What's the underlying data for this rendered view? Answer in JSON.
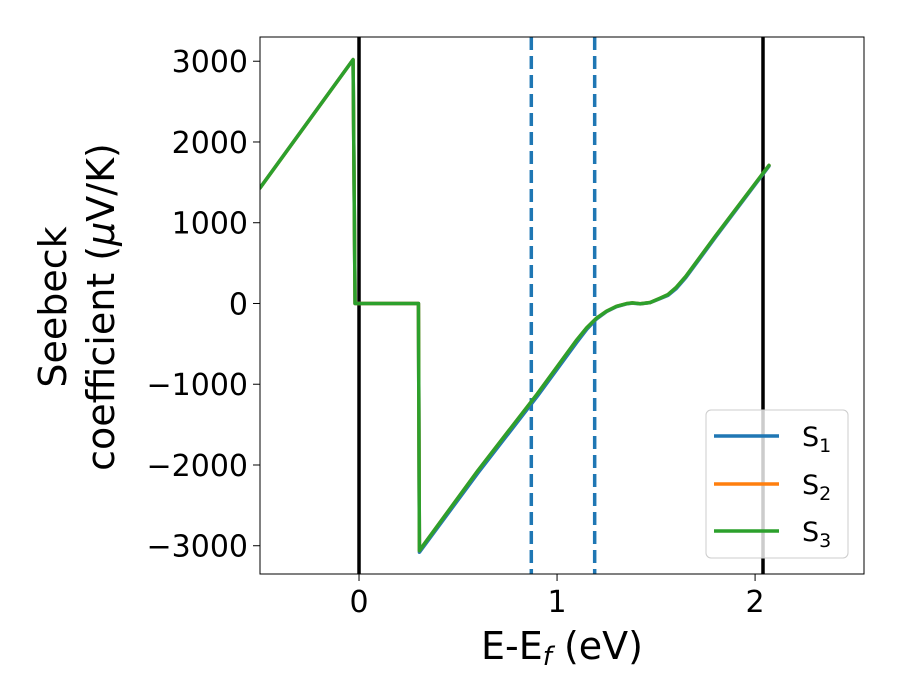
{
  "chart_data": {
    "type": "line",
    "xlabel": {
      "main": "E-E",
      "sub": "f",
      "tail": " (eV)"
    },
    "ylabel": {
      "line1": "Seebeck",
      "line2_prefix": "coefficient  (",
      "line2_mu": "μ",
      "line2_suffix": "V/K)"
    },
    "xlim": [
      -0.5,
      2.55
    ],
    "ylim": [
      -3350,
      3300
    ],
    "xticks": [
      0,
      1,
      2
    ],
    "xtick_labels": [
      "0",
      "1",
      "2"
    ],
    "yticks": [
      -3000,
      -2000,
      -1000,
      0,
      1000,
      2000,
      3000
    ],
    "ytick_labels": [
      "−3000",
      "−2000",
      "−1000",
      "0",
      "1000",
      "2000",
      "3000"
    ],
    "grid": false,
    "legend_position": "lower-right",
    "vlines": [
      {
        "x": 0.0,
        "style": "solid",
        "color": "#000000"
      },
      {
        "x": 2.04,
        "style": "solid",
        "color": "#000000"
      },
      {
        "x": 0.87,
        "style": "dashed",
        "color": "#1f77b4"
      },
      {
        "x": 1.19,
        "style": "dashed",
        "color": "#1f77b4"
      }
    ],
    "series": [
      {
        "name": {
          "main": "S",
          "sub": "1"
        },
        "color": "#1f77b4",
        "x": [
          -0.5,
          -0.03,
          -0.02,
          0.3,
          0.305,
          0.6,
          0.9,
          1.1,
          1.15,
          1.2,
          1.25,
          1.3,
          1.35,
          1.38,
          1.42,
          1.47,
          1.52,
          1.56,
          1.6,
          1.65,
          1.8,
          2.07
        ],
        "y": [
          1430,
          3020,
          0,
          0,
          -3080,
          -2100,
          -1150,
          -480,
          -320,
          -190,
          -100,
          -40,
          -5,
          5,
          -5,
          10,
          60,
          100,
          180,
          320,
          820,
          1700
        ]
      },
      {
        "name": {
          "main": "S",
          "sub": "2"
        },
        "color": "#ff7f0e",
        "x": [
          -0.5,
          -0.03,
          -0.02,
          0.3,
          0.305,
          0.6,
          0.9,
          1.1,
          1.15,
          1.2,
          1.25,
          1.3,
          1.35,
          1.38,
          1.42,
          1.47,
          1.52,
          1.56,
          1.6,
          1.65,
          1.8,
          2.07
        ],
        "y": [
          1430,
          3020,
          0,
          0,
          -3060,
          -2070,
          -1120,
          -450,
          -300,
          -180,
          -95,
          -35,
          -2,
          8,
          -3,
          12,
          65,
          110,
          195,
          335,
          835,
          1710
        ]
      },
      {
        "name": {
          "main": "S",
          "sub": "3"
        },
        "color": "#2ca02c",
        "x": [
          -0.5,
          -0.03,
          -0.02,
          0.3,
          0.305,
          0.6,
          0.9,
          1.1,
          1.15,
          1.2,
          1.25,
          1.3,
          1.35,
          1.38,
          1.42,
          1.47,
          1.52,
          1.56,
          1.6,
          1.65,
          1.8,
          2.07
        ],
        "y": [
          1430,
          3020,
          0,
          0,
          -3060,
          -2070,
          -1120,
          -450,
          -300,
          -180,
          -95,
          -35,
          -2,
          8,
          -3,
          12,
          65,
          110,
          195,
          335,
          835,
          1710
        ]
      }
    ]
  }
}
